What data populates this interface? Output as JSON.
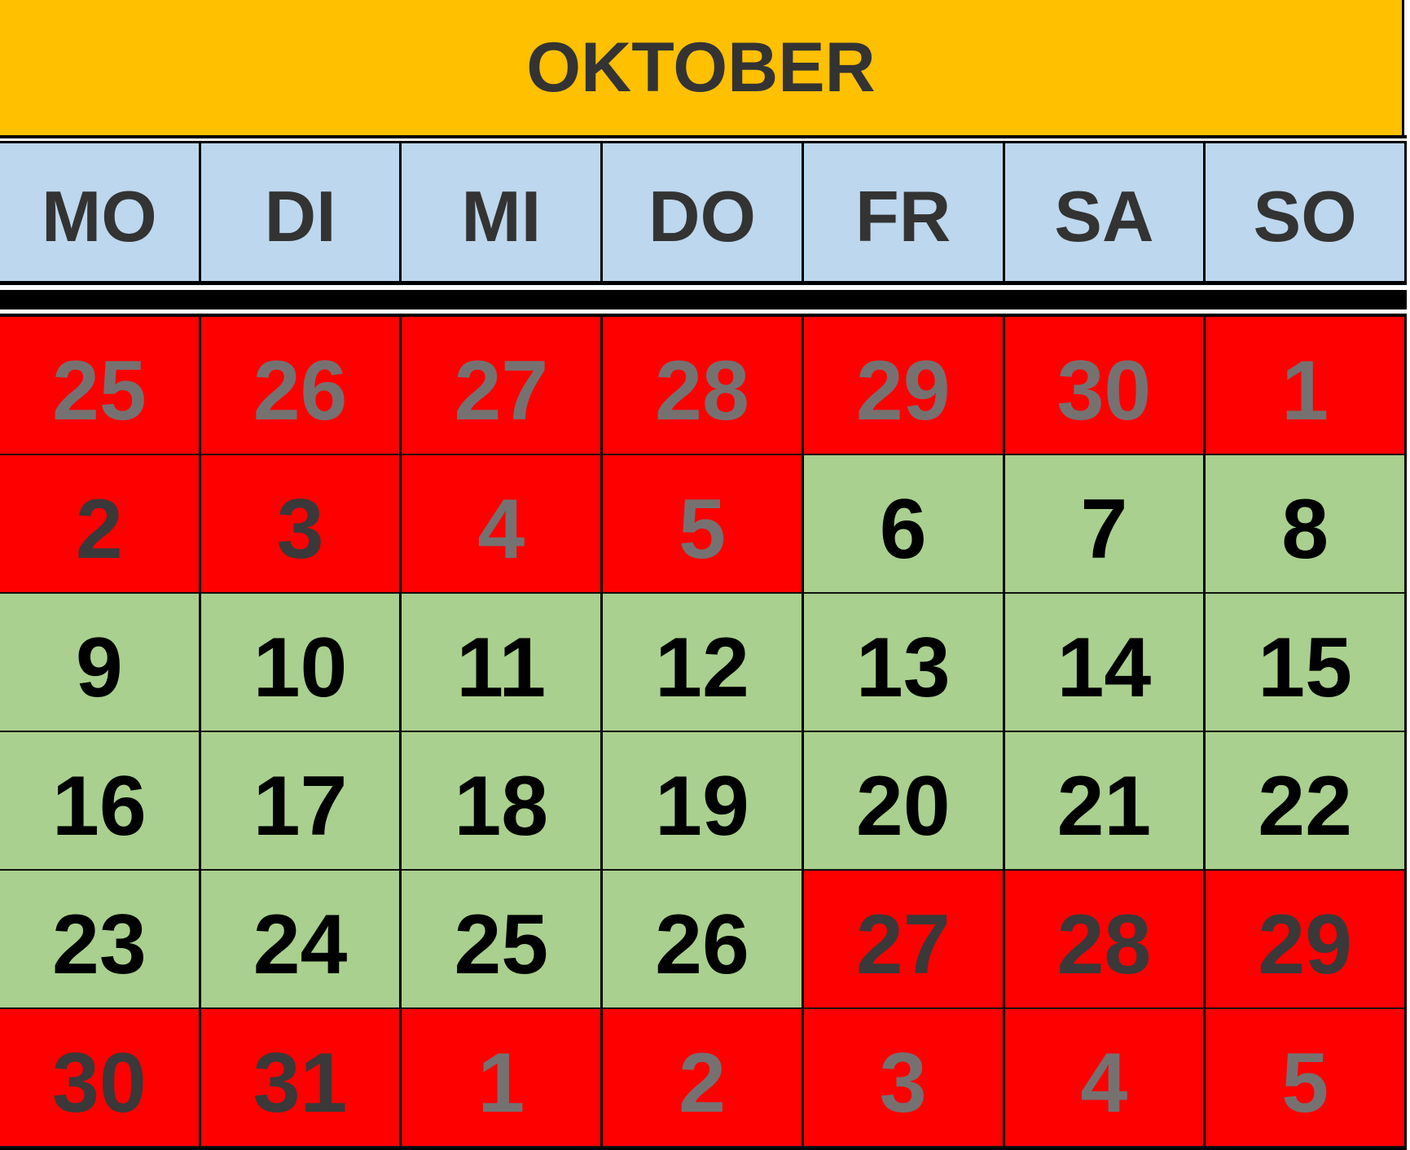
{
  "title": "OKTOBER",
  "colors": {
    "header": "#FFC000",
    "weekday_bg": "#BDD7EE",
    "blocked": "#FF0000",
    "available": "#A9D08E"
  },
  "weekdays": [
    "MO",
    "DI",
    "MI",
    "DO",
    "FR",
    "SA",
    "SO"
  ],
  "days": [
    {
      "day": "25",
      "status": "red",
      "tone": "grey"
    },
    {
      "day": "26",
      "status": "red",
      "tone": "grey"
    },
    {
      "day": "27",
      "status": "red",
      "tone": "grey"
    },
    {
      "day": "28",
      "status": "red",
      "tone": "grey"
    },
    {
      "day": "29",
      "status": "red",
      "tone": "grey"
    },
    {
      "day": "30",
      "status": "red",
      "tone": "grey"
    },
    {
      "day": "1",
      "status": "red",
      "tone": "grey"
    },
    {
      "day": "2",
      "status": "red",
      "tone": "dark"
    },
    {
      "day": "3",
      "status": "red",
      "tone": "dark"
    },
    {
      "day": "4",
      "status": "red",
      "tone": "grey"
    },
    {
      "day": "5",
      "status": "red",
      "tone": "grey"
    },
    {
      "day": "6",
      "status": "green",
      "tone": "black"
    },
    {
      "day": "7",
      "status": "green",
      "tone": "black"
    },
    {
      "day": "8",
      "status": "green",
      "tone": "black"
    },
    {
      "day": "9",
      "status": "green",
      "tone": "black"
    },
    {
      "day": "10",
      "status": "green",
      "tone": "black"
    },
    {
      "day": "11",
      "status": "green",
      "tone": "black"
    },
    {
      "day": "12",
      "status": "green",
      "tone": "black"
    },
    {
      "day": "13",
      "status": "green",
      "tone": "black"
    },
    {
      "day": "14",
      "status": "green",
      "tone": "black"
    },
    {
      "day": "15",
      "status": "green",
      "tone": "black"
    },
    {
      "day": "16",
      "status": "green",
      "tone": "black"
    },
    {
      "day": "17",
      "status": "green",
      "tone": "black"
    },
    {
      "day": "18",
      "status": "green",
      "tone": "black"
    },
    {
      "day": "19",
      "status": "green",
      "tone": "black"
    },
    {
      "day": "20",
      "status": "green",
      "tone": "black"
    },
    {
      "day": "21",
      "status": "green",
      "tone": "black"
    },
    {
      "day": "22",
      "status": "green",
      "tone": "black"
    },
    {
      "day": "23",
      "status": "green",
      "tone": "black"
    },
    {
      "day": "24",
      "status": "green",
      "tone": "black"
    },
    {
      "day": "25",
      "status": "green",
      "tone": "black"
    },
    {
      "day": "26",
      "status": "green",
      "tone": "black"
    },
    {
      "day": "27",
      "status": "red",
      "tone": "dark"
    },
    {
      "day": "28",
      "status": "red",
      "tone": "dark"
    },
    {
      "day": "29",
      "status": "red",
      "tone": "dark"
    },
    {
      "day": "30",
      "status": "red",
      "tone": "dark"
    },
    {
      "day": "31",
      "status": "red",
      "tone": "dark"
    },
    {
      "day": "1",
      "status": "red",
      "tone": "grey"
    },
    {
      "day": "2",
      "status": "red",
      "tone": "grey"
    },
    {
      "day": "3",
      "status": "red",
      "tone": "grey"
    },
    {
      "day": "4",
      "status": "red",
      "tone": "grey"
    },
    {
      "day": "5",
      "status": "red",
      "tone": "grey"
    }
  ]
}
